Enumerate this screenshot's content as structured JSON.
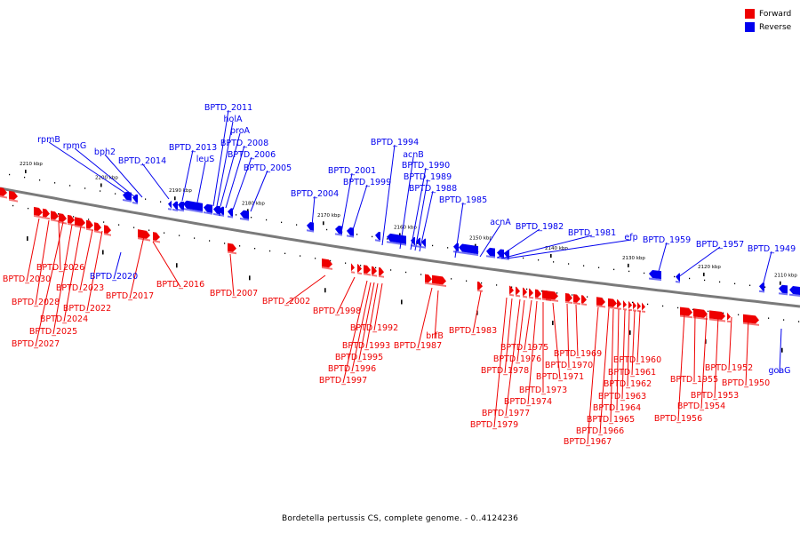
{
  "colors": {
    "forward": "#ee0000",
    "reverse": "#0000ee",
    "backbone": "#7a7a7a",
    "ticks": "#000000"
  },
  "legend": [
    {
      "label": "Forward",
      "color": "#ee0000"
    },
    {
      "label": "Reverse",
      "color": "#0000ee"
    }
  ],
  "caption": "Bordetella pertussis CS, complete genome. - 0..4124236",
  "scale": {
    "labels": [
      "2210 kbp",
      "2200 kbp",
      "2190 kbp",
      "2180 kbp",
      "2170 kbp",
      "2160 kbp",
      "2150 kbp",
      "2140 kbp",
      "2130 kbp",
      "2120 kbp",
      "2110 kbp"
    ]
  },
  "genes": {
    "reverse": [
      "rpmB",
      "rpmG",
      "bph2",
      "BPTD_2014",
      "BPTD_2013",
      "leuS",
      "BPTD_2011",
      "holA",
      "proA",
      "BPTD_2008",
      "BPTD_2006",
      "BPTD_2005",
      "BPTD_2004",
      "BPTD_2001",
      "BPTD_1999",
      "BPTD_1994",
      "acnB",
      "BPTD_1990",
      "BPTD_1989",
      "BPTD_1988",
      "BPTD_1985",
      "acnA",
      "BPTD_1982",
      "BPTD_1981",
      "efp",
      "BPTD_1959",
      "BPTD_1957",
      "BPTD_1949",
      "BPTD_2020",
      "goaG"
    ],
    "forward": [
      "BPTD_2030",
      "BPTD_2028",
      "BPTD_2027",
      "BPTD_2026",
      "BPTD_2025",
      "BPTD_2024",
      "BPTD_2023",
      "BPTD_2022",
      "BPTD_2017",
      "BPTD_2016",
      "BPTD_2007",
      "BPTD_2002",
      "BPTD_1998",
      "BPTD_1997",
      "BPTD_1996",
      "BPTD_1995",
      "BPTD_1993",
      "BPTD_1992",
      "BPTD_1987",
      "brfB",
      "BPTD_1983",
      "BPTD_1979",
      "BPTD_1978",
      "BPTD_1977",
      "BPTD_1976",
      "BPTD_1975",
      "BPTD_1974",
      "BPTD_1973",
      "BPTD_1971",
      "BPTD_1970",
      "BPTD_1969",
      "BPTD_1967",
      "BPTD_1966",
      "BPTD_1965",
      "BPTD_1964",
      "BPTD_1963",
      "BPTD_1962",
      "BPTD_1961",
      "BPTD_1960",
      "BPTD_1956",
      "BPTD_1955",
      "BPTD_1954",
      "BPTD_1953",
      "BPTD_1952",
      "BPTD_1950"
    ]
  }
}
